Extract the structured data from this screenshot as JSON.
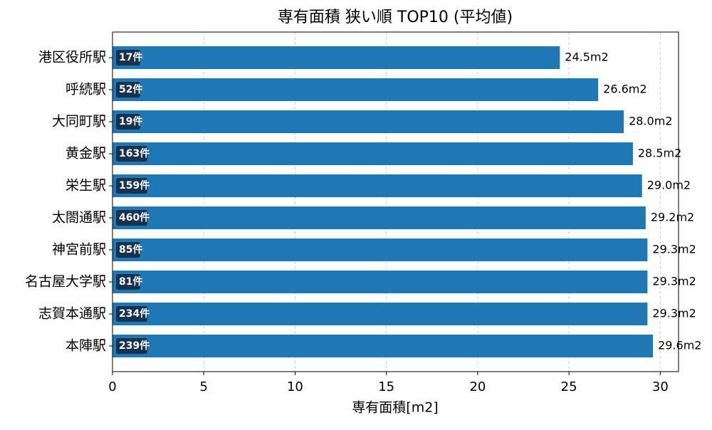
{
  "chart_data": {
    "type": "barh",
    "title": "専有面積 狭い順 TOP10 (平均値)",
    "x_label": "専有面積[m2]",
    "categories": [
      "港区役所駅",
      "呼続駅",
      "大同町駅",
      "黄金駅",
      "栄生駅",
      "太閤通駅",
      "神宮前駅",
      "名古屋大学駅",
      "志賀本通駅",
      "本陣駅"
    ],
    "values": [
      24.5,
      26.6,
      28.0,
      28.5,
      29.0,
      29.2,
      29.3,
      29.3,
      29.3,
      29.6
    ],
    "value_labels": [
      "24.5m2",
      "26.6m2",
      "28.0m2",
      "28.5m2",
      "29.0m2",
      "29.2m2",
      "29.3m2",
      "29.3m2",
      "29.3m2",
      "29.6m2"
    ],
    "count_labels": [
      "17件",
      "52件",
      "19件",
      "163件",
      "159件",
      "460件",
      "85件",
      "81件",
      "234件",
      "239件"
    ],
    "color": "#1f77b4",
    "count_box_color": "#16324f",
    "xlim": [
      0,
      31
    ],
    "xticks": [
      0,
      5,
      10,
      15,
      20,
      25,
      30
    ],
    "grid": true
  }
}
